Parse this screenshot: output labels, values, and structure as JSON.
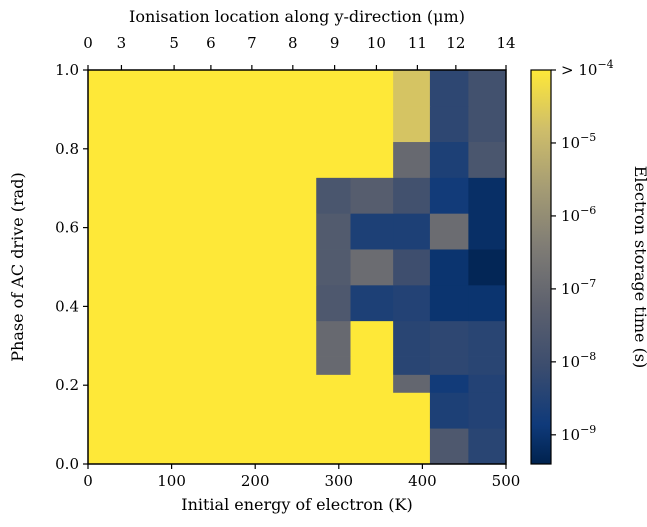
{
  "chart_data": {
    "type": "heatmap",
    "xlabel": "Initial energy of electron (K)",
    "ylabel": "Phase of AC drive (rad)",
    "top_xlabel": "Ionisation location along y-direction (μm)",
    "colorbar_label": "Electron storage time (s)",
    "xlim": [
      0,
      500
    ],
    "ylim": [
      0,
      1.0
    ],
    "x_ticks": [
      0,
      100,
      200,
      300,
      400,
      500
    ],
    "y_ticks": [
      "0.0",
      "0.2",
      "0.4",
      "0.6",
      "0.8",
      "1.0"
    ],
    "top_ticks": [
      {
        "label": "0",
        "energy": 0
      },
      {
        "label": "3",
        "energy": 40
      },
      {
        "label": "5",
        "energy": 103
      },
      {
        "label": "6",
        "energy": 147
      },
      {
        "label": "7",
        "energy": 196
      },
      {
        "label": "8",
        "energy": 245
      },
      {
        "label": "9",
        "energy": 295
      },
      {
        "label": "10",
        "energy": 345
      },
      {
        "label": "11",
        "energy": 394
      },
      {
        "label": "12",
        "energy": 440
      },
      {
        "label": "14",
        "energy": 500
      }
    ],
    "colorbar_ticks": [
      {
        "label": "> 10",
        "sup": "−4",
        "log10": -4
      },
      {
        "label": "10",
        "sup": "−5",
        "log10": -5
      },
      {
        "label": "10",
        "sup": "−6",
        "log10": -6
      },
      {
        "label": "10",
        "sup": "−7",
        "log10": -7
      },
      {
        "label": "10",
        "sup": "−8",
        "log10": -8
      },
      {
        "label": "10",
        "sup": "−9",
        "log10": -9
      }
    ],
    "colorbar_range_log10": [
      -9.4,
      -4.0
    ],
    "colormap": "cividis",
    "x_edges": [
      0,
      273,
      314,
      365,
      409,
      455,
      500
    ],
    "y_edges": [
      0.0,
      0.0909,
      0.1818,
      0.2273,
      0.2727,
      0.3636,
      0.4545,
      0.5455,
      0.6364,
      0.7273,
      0.8182,
      0.9091,
      1.0
    ],
    "columns_note": "log10 storage time per cell, columns follow x_edges, rows follow y_edges from bottom",
    "values_log10": [
      [
        -4.0,
        -4.0,
        -4.0,
        -4.0,
        -7.6,
        -8.4
      ],
      [
        -4.0,
        -4.0,
        -4.0,
        -4.0,
        -8.6,
        -8.5
      ],
      [
        -4.0,
        -4.0,
        -4.0,
        -7.1,
        -8.8,
        -8.5
      ],
      [
        -4.0,
        -7.0,
        -4.0,
        -8.4,
        -8.3,
        -8.4
      ],
      [
        -4.0,
        -7.0,
        -4.0,
        -8.4,
        -8.3,
        -8.4
      ],
      [
        -4.0,
        -7.6,
        -8.6,
        -8.5,
        -9.0,
        -9.0
      ],
      [
        -4.0,
        -7.5,
        -6.9,
        -8.0,
        -9.0,
        -9.3
      ],
      [
        -4.0,
        -7.5,
        -8.6,
        -8.6,
        -6.9,
        -9.1
      ],
      [
        -4.0,
        -7.7,
        -7.4,
        -7.9,
        -8.8,
        -9.1
      ],
      [
        -4.0,
        -4.0,
        -4.0,
        -7.0,
        -8.6,
        -7.7
      ],
      [
        -4.0,
        -4.0,
        -4.0,
        -4.7,
        -8.3,
        -7.9
      ],
      [
        -4.0,
        -4.0,
        -4.0,
        -4.7,
        -8.3,
        -7.9
      ]
    ]
  }
}
